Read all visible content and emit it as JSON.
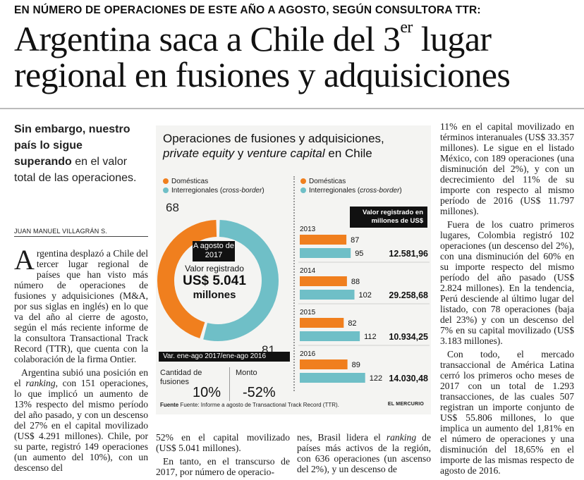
{
  "kicker": "EN NÚMERO DE OPERACIONES DE ESTE AÑO A AGOSTO, SEGÚN CONSULTORA TTR:",
  "headline": {
    "line1_a": "Argentina saca a Chile del 3",
    "line1_sup": "er",
    "line1_b": " lugar",
    "line2": "regional en fusiones y adquisiciones"
  },
  "lead": {
    "bold": "Sin embargo, nuestro país lo sigue superando",
    "rest": " en el valor total de las operaciones."
  },
  "byline": "JUAN MANUEL VILLAGRÁN S.",
  "col1": {
    "dropcap": "A",
    "p1": "rgentina desplazó a Chile del tercer lugar regional de países que han visto más número de operaciones de fusiones y adquisiciones (M&A, por sus siglas en inglés) en lo que va del año al cierre de agosto, según el más reciente informe de la consultora Transactional Track Record (TTR), que cuenta con la colaboración de la firma Ontier.",
    "p2_a": "Argentina subió una posición en el ",
    "p2_em": "ranking",
    "p2_b": ", con 151 operaciones, lo que implicó un aumento de 13% respecto del mismo período del año pasado, y con un descenso del 27% en el capital movilizado (US$ 4.291 millones). Chile, por su parte, registró 149 operaciones (un aumento del 10%), con un descenso del"
  },
  "col2": {
    "p1": "52% en el capital movilizado (US$ 5.041 millones).",
    "p2": "En tanto, en el transcurso de 2017, por número de operacio-"
  },
  "col3": {
    "p1_a": "nes, Brasil lidera el ",
    "p1_em": "ranking",
    "p1_b": " de países más activos de la región, con 636 operaciones (un ascenso del 2%), y un descenso de"
  },
  "col4": {
    "p1": "11% en el capital movilizado en términos interanuales (US$ 33.357 millones). Le sigue en el listado México, con 189 operaciones (una disminución del 2%), y con un decrecimiento del 11% de su importe con respecto al mismo período de 2016 (US$ 11.797 millones).",
    "p2": "Fuera de los cuatro primeros lugares, Colombia registró 102 operaciones (un descenso del 2%), con una disminución del 60% en su importe respecto del mismo período del año pasado (US$ 2.824 millones). En la tendencia, Perú desciende al último lugar del listado, con 78 operaciones (baja del 23%) y con un descenso del 7% en su capital movilizado (US$ 3.183 millones).",
    "p3": "Con todo, el mercado transaccional de América Latina cerró los primeros ocho meses de 2017 con un total de 1.293 transacciones, de las cuales 507 registran un importe conjunto de US$ 55.806 millones, lo que implica un aumento del 1,81% en el número de operaciones y una disminución del 18,65% en el importe de las mismas respecto de agosto de 2016."
  },
  "graphic": {
    "title_line1": "Operaciones de fusiones y adquisiciones,",
    "title_em1": "private equity",
    "title_mid": " y ",
    "title_em2": "venture capital",
    "title_end": " en Chile",
    "legend_domestic": "Domésticas",
    "legend_inter": "Interregionales (",
    "legend_inter_em": "cross-border",
    "legend_inter_end": ")",
    "colors": {
      "domestic": "#f07f1e",
      "inter": "#6fbfc7",
      "badge": "#111111"
    },
    "period_badge": "A agosto de 2017",
    "value_label": "Valor registrado",
    "value_amount": "US$ 5.041",
    "value_unit": "millones",
    "var_header": "Var. ene-ago 2017/ene-ago 2016",
    "qty_label": "Cantidad de fusiones",
    "qty_value": "10%",
    "amount_label": "Monto",
    "amount_value": "-52%",
    "reg_header": "Valor registrado en millones de US$",
    "source_bold": "Fuente",
    "source_rest": " Fuente: Informe a agosto de Transactional Track Record (TTR).",
    "credit": "EL MERCURIO"
  },
  "chart_data": [
    {
      "type": "pie",
      "labels": [
        "Domésticas",
        "Interregionales (cross-border)"
      ],
      "values": [
        68,
        81
      ]
    },
    {
      "type": "bar",
      "categories": [
        "2013",
        "2014",
        "2015",
        "2016"
      ],
      "series": [
        {
          "name": "Domésticas",
          "values": [
            87,
            88,
            82,
            89
          ]
        },
        {
          "name": "Interregionales (cross-border)",
          "values": [
            95,
            102,
            112,
            122
          ]
        }
      ],
      "valor_registrado": [
        "12.581,96",
        "29.258,68",
        "10.934,25",
        "14.030,48"
      ]
    }
  ]
}
